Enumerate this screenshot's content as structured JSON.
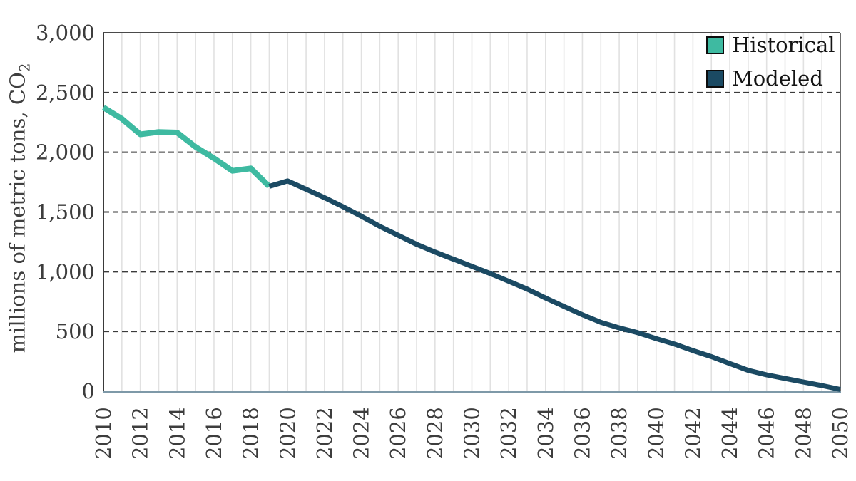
{
  "y_axis": {
    "title_main": "millions of metric tons, CO",
    "title_sub": "2",
    "tick_labels": [
      "0",
      "500",
      "1,000",
      "1,500",
      "2,000",
      "2,500",
      "3,000"
    ],
    "tick_values": [
      0,
      500,
      1000,
      1500,
      2000,
      2500,
      3000
    ],
    "tick_text_color": "#3d3d3d"
  },
  "x_axis": {
    "tick_labels": [
      "2010",
      "2012",
      "2014",
      "2016",
      "2018",
      "2020",
      "2022",
      "2024",
      "2026",
      "2028",
      "2030",
      "2032",
      "2034",
      "2036",
      "2038",
      "2040",
      "2042",
      "2044",
      "2046",
      "2048",
      "2050"
    ],
    "tick_values": [
      2010,
      2012,
      2014,
      2016,
      2018,
      2020,
      2022,
      2024,
      2026,
      2028,
      2030,
      2032,
      2034,
      2036,
      2038,
      2040,
      2042,
      2044,
      2046,
      2048,
      2050
    ],
    "tick_text_color": "#3d3d3d"
  },
  "legend": {
    "items": [
      {
        "label": "Historical",
        "color": "#3ebaa1"
      },
      {
        "label": "Modeled",
        "color": "#1b4a63"
      }
    ]
  },
  "chart_data": {
    "type": "line",
    "title": "",
    "xlabel": "",
    "ylabel": "millions of metric tons, CO2",
    "xlim": [
      2010,
      2050
    ],
    "ylim": [
      0,
      3000
    ],
    "legend_position": "top-right-inside",
    "grid_vertical": "solid light gray line every year",
    "grid_horizontal": "dashed dark line every 500",
    "grid_vertical_color": "#e1e1e1",
    "grid_horizontal_color": "#3b3b3b",
    "border_color": "#4a4a4a",
    "baseline_color": "#7e99a8",
    "series": [
      {
        "name": "Historical",
        "color": "#3ebaa1",
        "x": [
          2010,
          2011,
          2012,
          2013,
          2014,
          2015,
          2016,
          2017,
          2018,
          2019
        ],
        "values": [
          2375,
          2280,
          2150,
          2170,
          2165,
          2045,
          1950,
          1845,
          1865,
          1715
        ]
      },
      {
        "name": "Modeled",
        "color": "#1b4a63",
        "x": [
          2019,
          2020,
          2021,
          2022,
          2023,
          2024,
          2025,
          2026,
          2027,
          2028,
          2029,
          2030,
          2031,
          2032,
          2033,
          2034,
          2035,
          2036,
          2037,
          2038,
          2039,
          2040,
          2041,
          2042,
          2043,
          2044,
          2045,
          2046,
          2047,
          2048,
          2049,
          2050
        ],
        "values": [
          1715,
          1760,
          1690,
          1620,
          1545,
          1465,
          1380,
          1305,
          1230,
          1165,
          1105,
          1045,
          985,
          920,
          855,
          780,
          710,
          640,
          577,
          530,
          490,
          440,
          395,
          340,
          290,
          232,
          175,
          137,
          107,
          77,
          48,
          15
        ]
      }
    ]
  }
}
